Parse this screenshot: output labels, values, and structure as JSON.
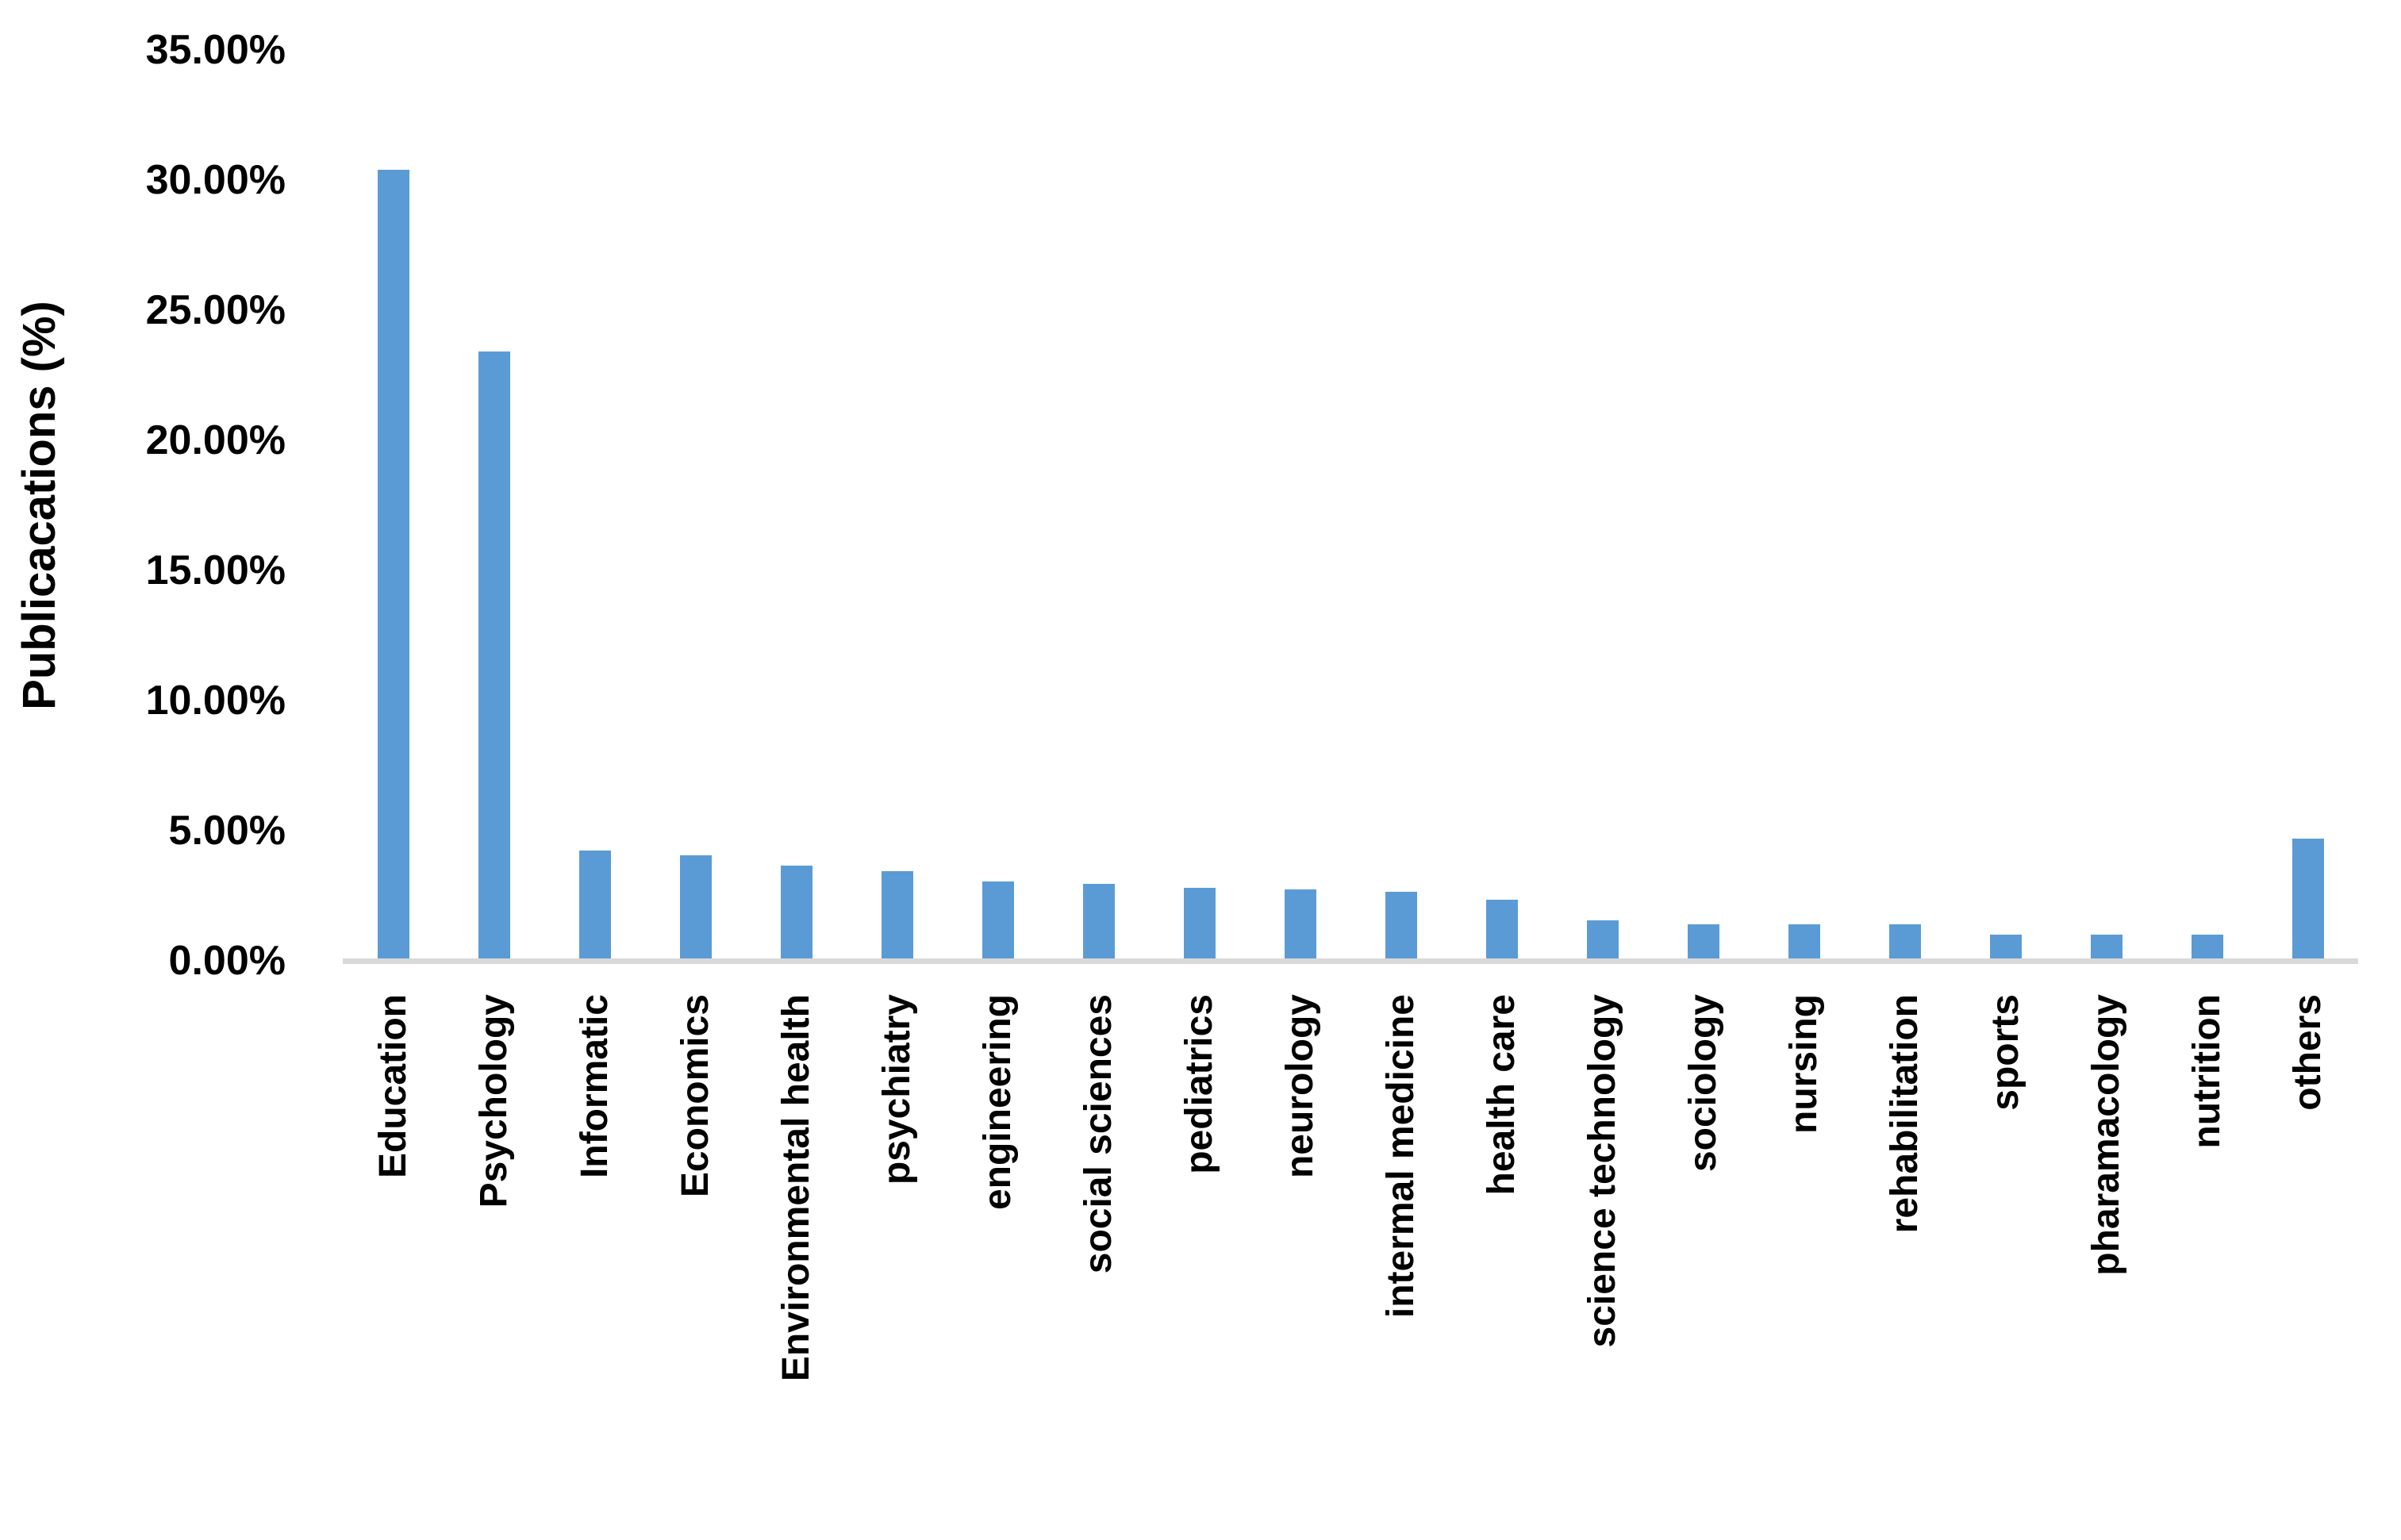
{
  "chart_data": {
    "type": "bar",
    "title": "",
    "xlabel": "",
    "ylabel": "Publicacations (%)",
    "ylim": [
      0,
      35
    ],
    "grid": false,
    "legend_position": "none",
    "background_color": "#FFFFFF",
    "bar_color": "#5B9BD5",
    "axis_line_color": "#D9D9D9",
    "text_color": "#000000",
    "ytick_values": [
      35,
      30,
      25,
      20,
      15,
      10,
      5,
      0
    ],
    "ytick_labels": [
      "35.00%",
      "30.00%",
      "25.00%",
      "20.00%",
      "15.00%",
      "10.00%",
      "5.00%",
      "0.00%"
    ],
    "categories": [
      "Education",
      "Psychology",
      "Informatic",
      "Economics",
      "Environmental health",
      "psychiatry",
      "engineering",
      "social sciences",
      "pediatrics",
      "neurology",
      "intermal medicine",
      "health care",
      "science technology",
      "sociology",
      "nursing",
      "rehabilitation",
      "sports",
      "pharamacology",
      "nutrition",
      "others"
    ],
    "values": [
      30.4,
      23.4,
      4.25,
      4.05,
      3.65,
      3.45,
      3.05,
      2.95,
      2.8,
      2.75,
      2.65,
      2.35,
      1.55,
      1.4,
      1.4,
      1.4,
      1.0,
      1.0,
      1.0,
      4.7
    ]
  }
}
